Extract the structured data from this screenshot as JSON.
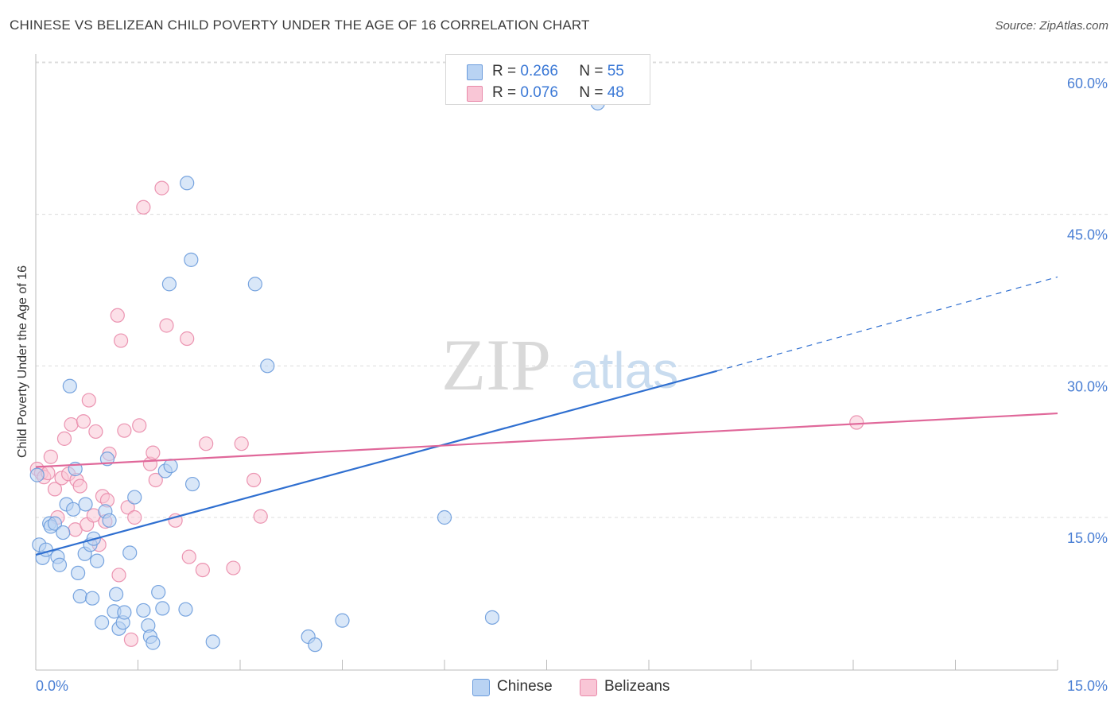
{
  "title": "CHINESE VS BELIZEAN CHILD POVERTY UNDER THE AGE OF 16 CORRELATION CHART",
  "source": "Source: ZipAtlas.com",
  "watermark": {
    "zip": "ZIP",
    "atlas": "atlas"
  },
  "colors": {
    "chinese_fill": "#b9d3f3",
    "chinese_stroke": "#6a9bdc",
    "chinese_line": "#2f6fd0",
    "belizean_fill": "#f9c6d6",
    "belizean_stroke": "#e98aaa",
    "belizean_line": "#e0689a",
    "tick_text": "#4a7fd4",
    "grid": "#dcdcdc"
  },
  "legend": {
    "chinese": {
      "r_label": "R =",
      "r_value": "0.266",
      "n_label": "N =",
      "n_value": "55"
    },
    "belizean": {
      "r_label": "R =",
      "r_value": "0.076",
      "n_label": "N =",
      "n_value": "48"
    }
  },
  "bottom_legend": {
    "chinese": "Chinese",
    "belizean": "Belizeans"
  },
  "chart_data": {
    "type": "scatter",
    "title": "CHINESE VS BELIZEAN CHILD POVERTY UNDER THE AGE OF 16 CORRELATION CHART",
    "xlabel": "",
    "ylabel": "Child Poverty Under the Age of 16",
    "xlim": [
      0,
      15
    ],
    "ylim": [
      0,
      62
    ],
    "x_tick_labels": [
      "0.0%",
      "15.0%"
    ],
    "y_ticks": [
      15,
      30,
      45,
      60
    ],
    "y_tick_labels": [
      "15.0%",
      "30.0%",
      "45.0%",
      "60.0%"
    ],
    "series": [
      {
        "name": "Chinese",
        "r": 0.266,
        "n": 55,
        "points": [
          [
            0.02,
            19.2
          ],
          [
            0.05,
            12.3
          ],
          [
            0.1,
            11.0
          ],
          [
            0.15,
            11.8
          ],
          [
            0.2,
            14.4
          ],
          [
            0.22,
            14.1
          ],
          [
            0.28,
            14.4
          ],
          [
            0.32,
            11.1
          ],
          [
            0.35,
            10.3
          ],
          [
            0.4,
            13.5
          ],
          [
            0.45,
            16.3
          ],
          [
            0.5,
            28.0
          ],
          [
            0.55,
            15.8
          ],
          [
            0.58,
            19.8
          ],
          [
            0.62,
            9.5
          ],
          [
            0.65,
            7.2
          ],
          [
            0.72,
            11.4
          ],
          [
            0.73,
            16.3
          ],
          [
            0.8,
            12.3
          ],
          [
            0.83,
            7.0
          ],
          [
            0.85,
            12.9
          ],
          [
            0.9,
            10.7
          ],
          [
            0.97,
            4.6
          ],
          [
            1.02,
            15.6
          ],
          [
            1.05,
            20.8
          ],
          [
            1.08,
            14.7
          ],
          [
            1.15,
            5.7
          ],
          [
            1.18,
            7.4
          ],
          [
            1.22,
            4.0
          ],
          [
            1.28,
            4.6
          ],
          [
            1.3,
            5.6
          ],
          [
            1.38,
            11.5
          ],
          [
            1.45,
            17.0
          ],
          [
            1.58,
            5.8
          ],
          [
            1.65,
            4.3
          ],
          [
            1.68,
            3.2
          ],
          [
            1.72,
            2.6
          ],
          [
            1.8,
            7.6
          ],
          [
            1.86,
            6.0
          ],
          [
            1.9,
            19.6
          ],
          [
            1.96,
            38.1
          ],
          [
            1.98,
            20.1
          ],
          [
            2.2,
            5.9
          ],
          [
            2.22,
            48.1
          ],
          [
            2.28,
            40.5
          ],
          [
            2.3,
            18.3
          ],
          [
            2.6,
            2.7
          ],
          [
            3.22,
            38.1
          ],
          [
            3.4,
            30.0
          ],
          [
            4.0,
            3.2
          ],
          [
            4.1,
            2.4
          ],
          [
            4.5,
            4.8
          ],
          [
            6.0,
            15.0
          ],
          [
            6.7,
            5.1
          ],
          [
            8.25,
            56.0
          ]
        ]
      },
      {
        "name": "Belizeans",
        "r": 0.076,
        "n": 48,
        "points": [
          [
            0.02,
            19.8
          ],
          [
            0.08,
            19.4
          ],
          [
            0.12,
            19.0
          ],
          [
            0.18,
            19.4
          ],
          [
            0.22,
            21.0
          ],
          [
            0.28,
            17.8
          ],
          [
            0.32,
            15.0
          ],
          [
            0.38,
            18.9
          ],
          [
            0.42,
            22.8
          ],
          [
            0.48,
            19.3
          ],
          [
            0.52,
            24.2
          ],
          [
            0.58,
            13.8
          ],
          [
            0.6,
            18.7
          ],
          [
            0.65,
            18.1
          ],
          [
            0.7,
            24.5
          ],
          [
            0.75,
            14.3
          ],
          [
            0.78,
            26.6
          ],
          [
            0.85,
            15.2
          ],
          [
            0.88,
            23.5
          ],
          [
            0.93,
            12.3
          ],
          [
            0.98,
            17.1
          ],
          [
            1.02,
            14.6
          ],
          [
            1.05,
            16.7
          ],
          [
            1.08,
            21.3
          ],
          [
            1.2,
            35.0
          ],
          [
            1.22,
            9.3
          ],
          [
            1.25,
            32.5
          ],
          [
            1.3,
            23.6
          ],
          [
            1.35,
            16.0
          ],
          [
            1.4,
            2.9
          ],
          [
            1.45,
            15.0
          ],
          [
            1.52,
            24.1
          ],
          [
            1.58,
            45.7
          ],
          [
            1.68,
            20.3
          ],
          [
            1.72,
            21.4
          ],
          [
            1.76,
            18.7
          ],
          [
            1.85,
            47.6
          ],
          [
            1.92,
            34.0
          ],
          [
            2.05,
            14.7
          ],
          [
            2.22,
            32.7
          ],
          [
            2.25,
            11.1
          ],
          [
            2.45,
            9.8
          ],
          [
            2.5,
            22.3
          ],
          [
            2.9,
            10.0
          ],
          [
            3.02,
            22.3
          ],
          [
            3.2,
            18.7
          ],
          [
            3.3,
            15.1
          ],
          [
            12.05,
            24.4
          ]
        ]
      }
    ],
    "trend_lines": [
      {
        "name": "Chinese",
        "x_start": 0,
        "y_start": 11.3,
        "x_end_solid": 10.0,
        "y_end_solid": 29.5,
        "x_end_dashed": 15.0,
        "y_end_dashed": 38.8
      },
      {
        "name": "Belizeans",
        "x_start": 0,
        "y_start": 20.0,
        "x_end": 15.0,
        "y_end": 25.3
      }
    ]
  }
}
